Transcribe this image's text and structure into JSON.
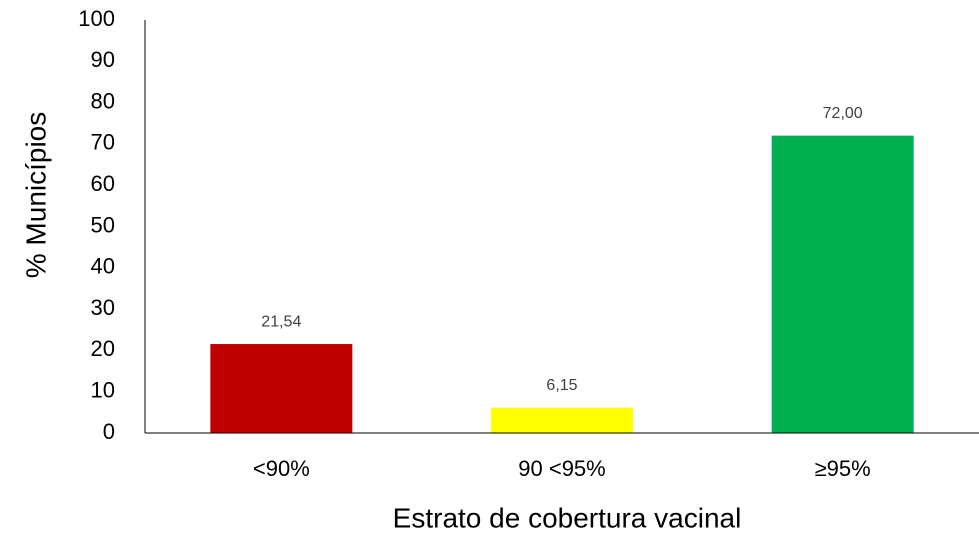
{
  "chart_data": {
    "type": "bar",
    "categories": [
      "<90%",
      "90 <95%",
      "≥95%"
    ],
    "values": [
      21.54,
      6.15,
      72
    ],
    "value_labels": [
      "21,54",
      "6,15",
      "72,00"
    ],
    "colors": [
      "#c00000",
      "#ffff00",
      "#00b050"
    ],
    "x_label": "Estrato de cobertura vacinal",
    "y_label": "% Municípios",
    "ylim": [
      0,
      100
    ],
    "yticks": [
      0,
      10,
      20,
      30,
      40,
      50,
      60,
      70,
      80,
      90,
      100
    ],
    "grid": false
  }
}
